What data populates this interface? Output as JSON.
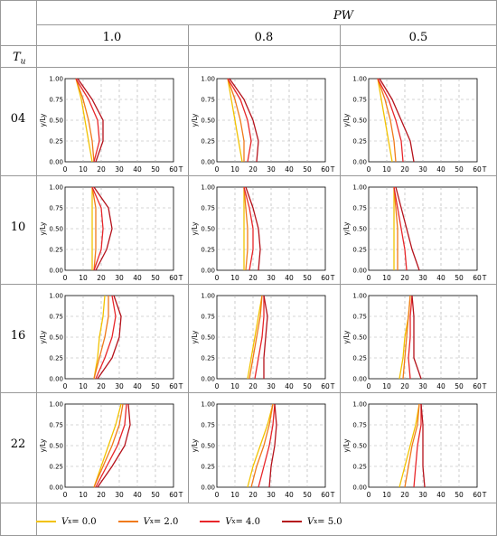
{
  "table": {
    "pw_header": "PW",
    "pw_values": [
      "1.0",
      "0.8",
      "0.5"
    ],
    "tu_header": "T",
    "tu_sub": "u",
    "tu_values": [
      "04",
      "10",
      "16",
      "22"
    ]
  },
  "axis": {
    "ylabel": "y/Ly",
    "xlabel": "T",
    "xticks": [
      "0",
      "10",
      "20",
      "30",
      "40",
      "50",
      "60"
    ],
    "yticks": [
      "0.00",
      "0.25",
      "0.50",
      "0.75",
      "1.00"
    ]
  },
  "legend": [
    {
      "label": "V",
      "sub": "x",
      "value": " = 0.0",
      "color": "#f2c200"
    },
    {
      "label": "V",
      "sub": "x",
      "value": " = 2.0",
      "color": "#f07a1a"
    },
    {
      "label": "V",
      "sub": "x",
      "value": " = 4.0",
      "color": "#e8262a"
    },
    {
      "label": "V",
      "sub": "x",
      "value": " = 5.0",
      "color": "#b5121b"
    }
  ],
  "chart_data": {
    "type": "line",
    "xlim": [
      0,
      60
    ],
    "ylim": [
      0,
      1
    ],
    "y": [
      0.0,
      0.25,
      0.5,
      0.75,
      1.0
    ],
    "series_names": [
      "Vx = 0.0",
      "Vx = 2.0",
      "Vx = 4.0",
      "Vx = 5.0"
    ],
    "panels": [
      {
        "tu": "04",
        "pw": "1.0",
        "series": [
          [
            15,
            13,
            11,
            9,
            6
          ],
          [
            16,
            15,
            13,
            10,
            6
          ],
          [
            16,
            19,
            18,
            13,
            6
          ],
          [
            17,
            21,
            21,
            15,
            7
          ]
        ]
      },
      {
        "tu": "04",
        "pw": "0.8",
        "series": [
          [
            14,
            12,
            10,
            8,
            6
          ],
          [
            15,
            15,
            13,
            10,
            6
          ],
          [
            17,
            19,
            17,
            13,
            6
          ],
          [
            22,
            23,
            20,
            15,
            7
          ]
        ]
      },
      {
        "tu": "04",
        "pw": "0.5",
        "series": [
          [
            13,
            11,
            9,
            7,
            5
          ],
          [
            15,
            14,
            12,
            9,
            5
          ],
          [
            19,
            18,
            15,
            11,
            5
          ],
          [
            25,
            23,
            18,
            13,
            6
          ]
        ]
      },
      {
        "tu": "10",
        "pw": "1.0",
        "series": [
          [
            15,
            15,
            15,
            15,
            15
          ],
          [
            16,
            17,
            17,
            17,
            15
          ],
          [
            16,
            20,
            21,
            20,
            15
          ],
          [
            17,
            23,
            26,
            24,
            16
          ]
        ]
      },
      {
        "tu": "10",
        "pw": "0.8",
        "series": [
          [
            15,
            15,
            15,
            15,
            15
          ],
          [
            16,
            17,
            17,
            16,
            15
          ],
          [
            18,
            20,
            20,
            18,
            15
          ],
          [
            23,
            24,
            23,
            20,
            16
          ]
        ]
      },
      {
        "tu": "10",
        "pw": "0.5",
        "series": [
          [
            14,
            14,
            14,
            14,
            14
          ],
          [
            16,
            16,
            16,
            15,
            14
          ],
          [
            21,
            20,
            18,
            16,
            14
          ],
          [
            28,
            24,
            21,
            18,
            15
          ]
        ]
      },
      {
        "tu": "16",
        "pw": "1.0",
        "series": [
          [
            16,
            18,
            19,
            21,
            22
          ],
          [
            16,
            19,
            22,
            24,
            24
          ],
          [
            17,
            22,
            26,
            28,
            26
          ],
          [
            18,
            26,
            30,
            31,
            27
          ]
        ]
      },
      {
        "tu": "16",
        "pw": "0.8",
        "series": [
          [
            17,
            19,
            21,
            23,
            25
          ],
          [
            18,
            20,
            22,
            24,
            25
          ],
          [
            21,
            23,
            25,
            26,
            26
          ],
          [
            26,
            26,
            27,
            28,
            26
          ]
        ]
      },
      {
        "tu": "16",
        "pw": "0.5",
        "series": [
          [
            17,
            19,
            20,
            22,
            23
          ],
          [
            19,
            20,
            21,
            22,
            23
          ],
          [
            23,
            22,
            23,
            23,
            24
          ],
          [
            29,
            25,
            25,
            25,
            24
          ]
        ]
      },
      {
        "tu": "22",
        "pw": "1.0",
        "series": [
          [
            16,
            20,
            24,
            28,
            31
          ],
          [
            16,
            21,
            26,
            30,
            32
          ],
          [
            17,
            23,
            29,
            33,
            34
          ],
          [
            18,
            26,
            33,
            36,
            35
          ]
        ]
      },
      {
        "tu": "22",
        "pw": "0.8",
        "series": [
          [
            17,
            20,
            24,
            28,
            31
          ],
          [
            19,
            22,
            26,
            29,
            31
          ],
          [
            23,
            26,
            29,
            31,
            32
          ],
          [
            29,
            30,
            32,
            33,
            32
          ]
        ]
      },
      {
        "tu": "22",
        "pw": "0.5",
        "series": [
          [
            17,
            20,
            23,
            26,
            28
          ],
          [
            20,
            22,
            24,
            27,
            28
          ],
          [
            25,
            26,
            27,
            29,
            29
          ],
          [
            31,
            30,
            30,
            30,
            29
          ]
        ]
      }
    ]
  }
}
